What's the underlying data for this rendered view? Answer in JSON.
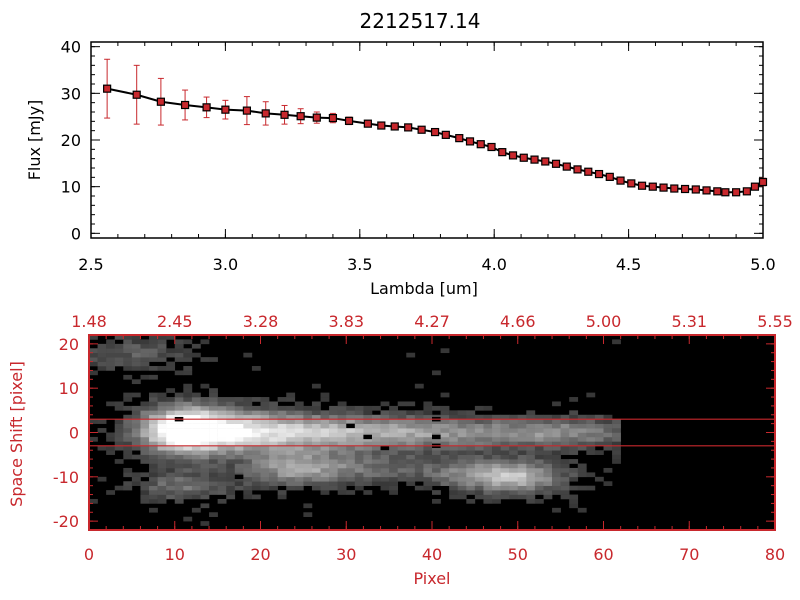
{
  "chart_data": [
    {
      "type": "line",
      "title": "2212517.14",
      "xlabel": "Lambda [um]",
      "ylabel": "Flux [mJy]",
      "xlim": [
        2.5,
        5.0
      ],
      "ylim": [
        -1,
        41
      ],
      "x_ticks": [
        "2.5",
        "3.0",
        "3.5",
        "4.0",
        "4.5",
        "5.0"
      ],
      "y_ticks": [
        "0",
        "10",
        "20",
        "30",
        "40"
      ],
      "line_color": "#000000",
      "marker_color": "#c8282d",
      "errorbar_color": "#c8282d",
      "series": [
        {
          "x": [
            2.56,
            2.67,
            2.76,
            2.85,
            2.93,
            3.0,
            3.08,
            3.15,
            3.22,
            3.28,
            3.34,
            3.4,
            3.46,
            3.53,
            3.58,
            3.63,
            3.68,
            3.73,
            3.78,
            3.82,
            3.87,
            3.91,
            3.95,
            3.99,
            4.03,
            4.07,
            4.11,
            4.15,
            4.19,
            4.23,
            4.27,
            4.31,
            4.35,
            4.39,
            4.43,
            4.47,
            4.51,
            4.55,
            4.59,
            4.63,
            4.67,
            4.71,
            4.75,
            4.79,
            4.83,
            4.86,
            4.9,
            4.94,
            4.97,
            5.0
          ],
          "y": [
            31,
            29.7,
            28.2,
            27.5,
            27,
            26.5,
            26.3,
            25.7,
            25.4,
            25.1,
            24.8,
            24.7,
            24.1,
            23.5,
            23.1,
            22.9,
            22.7,
            22.2,
            21.7,
            21.1,
            20.4,
            19.7,
            19.1,
            18.5,
            17.4,
            16.7,
            16.2,
            15.8,
            15.4,
            14.9,
            14.3,
            13.7,
            13.2,
            12.7,
            12.1,
            11.3,
            10.7,
            10.2,
            10.0,
            9.8,
            9.6,
            9.5,
            9.4,
            9.2,
            9.0,
            8.8,
            8.8,
            9.0,
            10.0,
            11.0
          ],
          "err": [
            6.3,
            6.3,
            5.0,
            3.2,
            2.2,
            2.0,
            3.0,
            2.5,
            2.0,
            1.6,
            1.2,
            1.0,
            0.8,
            0.7,
            0.6,
            0.6,
            0.6,
            0.6,
            0.5,
            0.5,
            0.5,
            0.5,
            0.5,
            0.5,
            0.5,
            0.5,
            0.5,
            0.5,
            0.5,
            0.5,
            0.5,
            0.5,
            0.5,
            0.5,
            0.5,
            0.5,
            0.5,
            0.5,
            0.5,
            0.5,
            0.5,
            0.5,
            0.5,
            0.5,
            0.5,
            0.5,
            0.5,
            0.5,
            0.6,
            0.8
          ]
        }
      ]
    },
    {
      "type": "heatmap",
      "xlabel": "Pixel",
      "ylabel": "Space Shift [pixel]",
      "xlim": [
        0,
        80
      ],
      "ylim": [
        -22,
        22
      ],
      "x_ticks": [
        "0",
        "10",
        "20",
        "30",
        "40",
        "50",
        "60",
        "70",
        "80"
      ],
      "y_ticks": [
        "-20",
        "-10",
        "0",
        "10",
        "20"
      ],
      "top_axis_ticks": [
        "1.48",
        "2.45",
        "3.28",
        "3.83",
        "4.27",
        "4.66",
        "5.00",
        "5.31",
        "5.55"
      ],
      "axis_color": "#c8282d",
      "extraction_aperture": [
        -3,
        3
      ],
      "colormap": "grayscale",
      "blobs": [
        {
          "x": 11,
          "y": 0.5,
          "amp": 1.0,
          "sx": 3.5,
          "sy": 3.8
        },
        {
          "x": 17,
          "y": 0.5,
          "amp": 0.6,
          "sx": 6,
          "sy": 3.5
        },
        {
          "x": 28,
          "y": 0.0,
          "amp": 0.45,
          "sx": 9,
          "sy": 2.8
        },
        {
          "x": 42,
          "y": 0.0,
          "amp": 0.38,
          "sx": 12,
          "sy": 2.6
        },
        {
          "x": 56,
          "y": 0.0,
          "amp": 0.3,
          "sx": 6,
          "sy": 2.3
        },
        {
          "x": 24,
          "y": -8,
          "amp": 0.55,
          "sx": 4,
          "sy": 2.8
        },
        {
          "x": 33,
          "y": -8,
          "amp": 0.3,
          "sx": 5,
          "sy": 2.5
        },
        {
          "x": 50,
          "y": -10,
          "amp": 0.65,
          "sx": 4,
          "sy": 2.6
        },
        {
          "x": 44,
          "y": -9,
          "amp": 0.3,
          "sx": 4,
          "sy": 2.5
        },
        {
          "x": 11,
          "y": -12,
          "amp": 0.35,
          "sx": 4,
          "sy": 2.5
        },
        {
          "x": 5,
          "y": 18,
          "amp": 0.25,
          "sx": 5,
          "sy": 3
        }
      ],
      "masked_pixels": [
        [
          10,
          2.5
        ],
        [
          30,
          1
        ],
        [
          32,
          -1.5
        ],
        [
          34,
          -4
        ],
        [
          40,
          2.5
        ],
        [
          40,
          -1.5
        ],
        [
          40,
          -3.5
        ],
        [
          17,
          -10.5
        ]
      ]
    }
  ]
}
